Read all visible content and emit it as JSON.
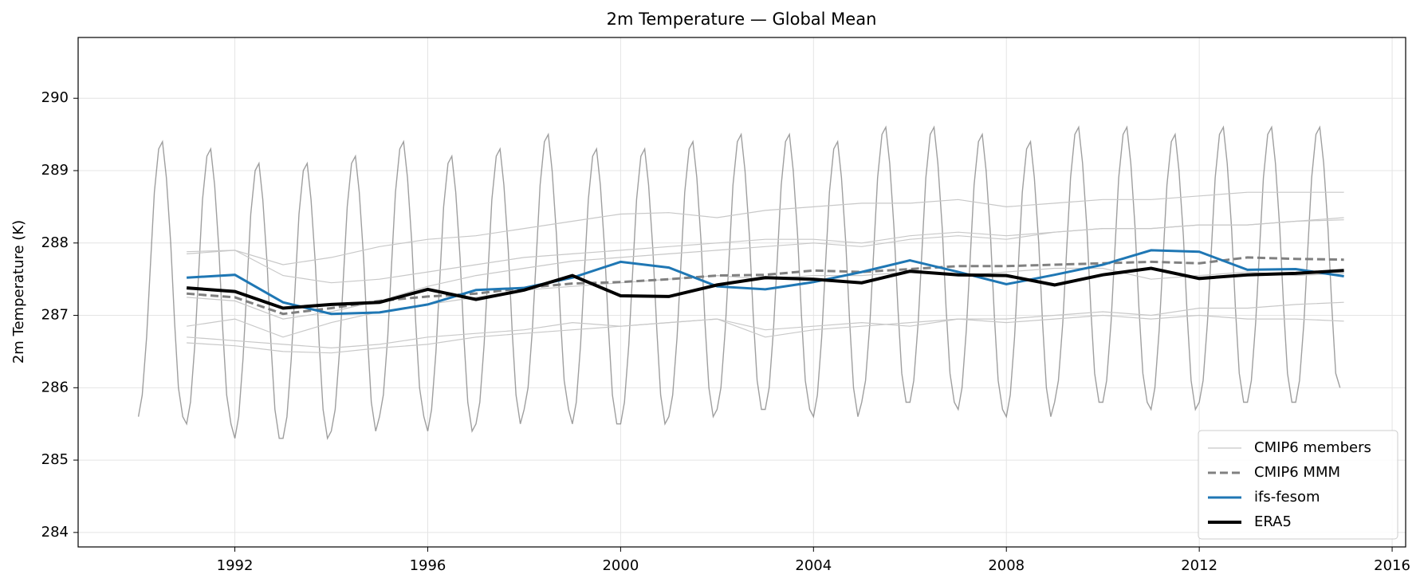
{
  "chart_data": {
    "type": "line",
    "title": "2m Temperature — Global Mean",
    "y_label": "2m Temperature (K)",
    "xlim": [
      1988.75,
      2016.28
    ],
    "ylim": [
      283.8,
      290.84
    ],
    "xticks": [
      1992,
      1996,
      2000,
      2004,
      2008,
      2012,
      2016
    ],
    "yticks": [
      284,
      285,
      286,
      287,
      288,
      289,
      290
    ],
    "grid": true,
    "legend": "lower right",
    "x": [
      1991,
      1992,
      1993,
      1994,
      1995,
      1996,
      1997,
      1998,
      1999,
      2000,
      2001,
      2002,
      2003,
      2004,
      2005,
      2006,
      2007,
      2008,
      2009,
      2010,
      2011,
      2012,
      2013,
      2014,
      2015
    ],
    "monthly": {
      "color": "#7f7f7f",
      "x": [
        1990.0,
        1990.08,
        1990.17,
        1990.25,
        1990.33,
        1990.42,
        1990.5,
        1990.58,
        1990.67,
        1990.75,
        1990.83,
        1990.92,
        1991.0,
        1991.08,
        1991.17,
        1991.25,
        1991.33,
        1991.42,
        1991.5,
        1991.58,
        1991.67,
        1991.75,
        1991.83,
        1991.92,
        1992.0,
        1992.08,
        1992.17,
        1992.25,
        1992.33,
        1992.42,
        1992.5,
        1992.58,
        1992.67,
        1992.75,
        1992.83,
        1992.92,
        1993.0,
        1993.08,
        1993.17,
        1993.25,
        1993.33,
        1993.42,
        1993.5,
        1993.58,
        1993.67,
        1993.75,
        1993.83,
        1993.92,
        1994.0,
        1994.08,
        1994.17,
        1994.25,
        1994.33,
        1994.42,
        1994.5,
        1994.58,
        1994.67,
        1994.75,
        1994.83,
        1994.92,
        1995.0,
        1995.08,
        1995.17,
        1995.25,
        1995.33,
        1995.42,
        1995.5,
        1995.58,
        1995.67,
        1995.75,
        1995.83,
        1995.92,
        1996.0,
        1996.08,
        1996.17,
        1996.25,
        1996.33,
        1996.42,
        1996.5,
        1996.58,
        1996.67,
        1996.75,
        1996.83,
        1996.92,
        1997.0,
        1997.08,
        1997.17,
        1997.25,
        1997.33,
        1997.42,
        1997.5,
        1997.58,
        1997.67,
        1997.75,
        1997.83,
        1997.92,
        1998.0,
        1998.08,
        1998.17,
        1998.25,
        1998.33,
        1998.42,
        1998.5,
        1998.58,
        1998.67,
        1998.75,
        1998.83,
        1998.92,
        1999.0,
        1999.08,
        1999.17,
        1999.25,
        1999.33,
        1999.42,
        1999.5,
        1999.58,
        1999.67,
        1999.75,
        1999.83,
        1999.92,
        2000.0,
        2000.08,
        2000.17,
        2000.25,
        2000.33,
        2000.42,
        2000.5,
        2000.58,
        2000.67,
        2000.75,
        2000.83,
        2000.92,
        2001.0,
        2001.08,
        2001.17,
        2001.25,
        2001.33,
        2001.42,
        2001.5,
        2001.58,
        2001.67,
        2001.75,
        2001.83,
        2001.92,
        2002.0,
        2002.08,
        2002.17,
        2002.25,
        2002.33,
        2002.42,
        2002.5,
        2002.58,
        2002.67,
        2002.75,
        2002.83,
        2002.92,
        2003.0,
        2003.08,
        2003.17,
        2003.25,
        2003.33,
        2003.42,
        2003.5,
        2003.58,
        2003.67,
        2003.75,
        2003.83,
        2003.92,
        2004.0,
        2004.08,
        2004.17,
        2004.25,
        2004.33,
        2004.42,
        2004.5,
        2004.58,
        2004.67,
        2004.75,
        2004.83,
        2004.92,
        2005.0,
        2005.08,
        2005.17,
        2005.25,
        2005.33,
        2005.42,
        2005.5,
        2005.58,
        2005.67,
        2005.75,
        2005.83,
        2005.92,
        2006.0,
        2006.08,
        2006.17,
        2006.25,
        2006.33,
        2006.42,
        2006.5,
        2006.58,
        2006.67,
        2006.75,
        2006.83,
        2006.92,
        2007.0,
        2007.08,
        2007.17,
        2007.25,
        2007.33,
        2007.42,
        2007.5,
        2007.58,
        2007.67,
        2007.75,
        2007.83,
        2007.92,
        2008.0,
        2008.08,
        2008.17,
        2008.25,
        2008.33,
        2008.42,
        2008.5,
        2008.58,
        2008.67,
        2008.75,
        2008.83,
        2008.92,
        2009.0,
        2009.08,
        2009.17,
        2009.25,
        2009.33,
        2009.42,
        2009.5,
        2009.58,
        2009.67,
        2009.75,
        2009.83,
        2009.92,
        2010.0,
        2010.08,
        2010.17,
        2010.25,
        2010.33,
        2010.42,
        2010.5,
        2010.58,
        2010.67,
        2010.75,
        2010.83,
        2010.92,
        2011.0,
        2011.08,
        2011.17,
        2011.25,
        2011.33,
        2011.42,
        2011.5,
        2011.58,
        2011.67,
        2011.75,
        2011.83,
        2011.92,
        2012.0,
        2012.08,
        2012.17,
        2012.25,
        2012.33,
        2012.42,
        2012.5,
        2012.58,
        2012.67,
        2012.75,
        2012.83,
        2012.92,
        2013.0,
        2013.08,
        2013.17,
        2013.25,
        2013.33,
        2013.42,
        2013.5,
        2013.58,
        2013.67,
        2013.75,
        2013.83,
        2013.92,
        2014.0,
        2014.08,
        2014.17,
        2014.25,
        2014.33,
        2014.42,
        2014.5,
        2014.58,
        2014.67,
        2014.75,
        2014.83,
        2014.92
      ],
      "values": [
        285.6,
        285.9,
        286.7,
        287.7,
        288.7,
        289.3,
        289.4,
        288.9,
        288.0,
        286.9,
        286.0,
        285.6,
        285.5,
        285.8,
        286.6,
        287.6,
        288.6,
        289.2,
        289.3,
        288.8,
        287.9,
        286.8,
        285.9,
        285.5,
        285.3,
        285.6,
        286.4,
        287.4,
        288.4,
        289.0,
        289.1,
        288.6,
        287.7,
        286.6,
        285.7,
        285.3,
        285.3,
        285.6,
        286.4,
        287.4,
        288.4,
        289.0,
        289.1,
        288.6,
        287.7,
        286.6,
        285.7,
        285.3,
        285.4,
        285.7,
        286.5,
        287.5,
        288.5,
        289.1,
        289.2,
        288.7,
        287.8,
        286.7,
        285.8,
        285.4,
        285.6,
        285.9,
        286.7,
        287.7,
        288.7,
        289.3,
        289.4,
        288.9,
        288.0,
        286.9,
        286.0,
        285.6,
        285.4,
        285.7,
        286.5,
        287.5,
        288.5,
        289.1,
        289.2,
        288.7,
        287.8,
        286.7,
        285.8,
        285.4,
        285.5,
        285.8,
        286.6,
        287.6,
        288.6,
        289.2,
        289.3,
        288.8,
        287.9,
        286.8,
        285.9,
        285.5,
        285.7,
        286.0,
        286.8,
        287.8,
        288.8,
        289.4,
        289.5,
        289.0,
        288.1,
        287.0,
        286.1,
        285.7,
        285.5,
        285.8,
        286.6,
        287.6,
        288.6,
        289.2,
        289.3,
        288.8,
        287.9,
        286.8,
        285.9,
        285.5,
        285.5,
        285.8,
        286.6,
        287.6,
        288.6,
        289.2,
        289.3,
        288.8,
        287.9,
        286.8,
        285.9,
        285.5,
        285.6,
        285.9,
        286.7,
        287.7,
        288.7,
        289.3,
        289.4,
        288.9,
        288.0,
        286.9,
        286.0,
        285.6,
        285.7,
        286.0,
        286.8,
        287.8,
        288.8,
        289.4,
        289.5,
        289.0,
        288.1,
        287.0,
        286.1,
        285.7,
        285.7,
        286.0,
        286.8,
        287.8,
        288.8,
        289.4,
        289.5,
        289.0,
        288.1,
        287.0,
        286.1,
        285.7,
        285.6,
        285.9,
        286.7,
        287.7,
        288.7,
        289.3,
        289.4,
        288.9,
        288.0,
        286.9,
        286.0,
        285.6,
        285.8,
        286.1,
        286.9,
        287.9,
        288.9,
        289.5,
        289.6,
        289.1,
        288.2,
        287.1,
        286.2,
        285.8,
        285.8,
        286.1,
        286.9,
        287.9,
        288.9,
        289.5,
        289.6,
        289.1,
        288.2,
        287.1,
        286.2,
        285.8,
        285.7,
        286.0,
        286.8,
        287.8,
        288.8,
        289.4,
        289.5,
        289.0,
        288.1,
        287.0,
        286.1,
        285.7,
        285.6,
        285.9,
        286.7,
        287.7,
        288.7,
        289.3,
        289.4,
        288.9,
        288.0,
        286.9,
        286.0,
        285.6,
        285.8,
        286.1,
        286.9,
        287.9,
        288.9,
        289.5,
        289.6,
        289.1,
        288.2,
        287.1,
        286.2,
        285.8,
        285.8,
        286.1,
        286.9,
        287.9,
        288.9,
        289.5,
        289.6,
        289.1,
        288.2,
        287.1,
        286.2,
        285.8,
        285.7,
        286.0,
        286.8,
        287.8,
        288.8,
        289.4,
        289.5,
        289.0,
        288.1,
        287.0,
        286.1,
        285.7,
        285.8,
        286.1,
        286.9,
        287.9,
        288.9,
        289.5,
        289.6,
        289.1,
        288.2,
        287.1,
        286.2,
        285.8,
        285.8,
        286.1,
        286.9,
        287.9,
        288.9,
        289.5,
        289.6,
        289.1,
        288.2,
        287.1,
        286.2,
        285.8,
        285.8,
        286.1,
        286.9,
        287.9,
        288.9,
        289.5,
        289.6,
        289.1,
        288.2,
        287.1,
        286.2,
        286.0
      ]
    },
    "series": [
      {
        "name": "CMIP6 members",
        "color": "#c8c8c8",
        "members": [
          [
            287.88,
            287.9,
            287.7,
            287.8,
            287.95,
            288.05,
            288.1,
            288.2,
            288.3,
            288.4,
            288.42,
            288.35,
            288.45,
            288.5,
            288.55,
            288.55,
            288.6,
            288.5,
            288.55,
            288.6,
            288.6,
            288.65,
            288.7,
            288.7,
            288.7
          ],
          [
            286.7,
            286.65,
            286.6,
            286.55,
            286.6,
            286.7,
            286.75,
            286.8,
            286.9,
            286.85,
            286.9,
            286.95,
            286.8,
            286.85,
            286.9,
            286.85,
            286.95,
            286.9,
            286.95,
            287.0,
            286.95,
            287.0,
            286.95,
            286.95,
            286.92
          ],
          [
            287.25,
            287.2,
            286.95,
            287.05,
            287.2,
            287.4,
            287.55,
            287.65,
            287.75,
            287.8,
            287.85,
            287.9,
            287.95,
            288.0,
            287.95,
            288.05,
            288.1,
            288.05,
            288.15,
            288.2,
            288.2,
            288.25,
            288.25,
            288.3,
            288.32
          ],
          [
            286.62,
            286.58,
            286.5,
            286.48,
            286.55,
            286.6,
            286.7,
            286.75,
            286.8,
            286.85,
            286.9,
            286.95,
            286.7,
            286.8,
            286.85,
            286.9,
            286.95,
            286.95,
            287.0,
            287.05,
            287.0,
            287.1,
            287.1,
            287.15,
            287.18
          ],
          [
            287.85,
            287.9,
            287.55,
            287.45,
            287.5,
            287.6,
            287.7,
            287.8,
            287.85,
            287.9,
            287.95,
            288.0,
            288.05,
            288.05,
            288.0,
            288.1,
            288.15,
            288.1,
            288.15,
            288.2,
            288.2,
            288.25,
            288.25,
            288.3,
            288.35
          ],
          [
            286.85,
            286.95,
            286.7,
            286.9,
            287.05,
            287.15,
            287.25,
            287.35,
            287.4,
            287.45,
            287.5,
            287.55,
            287.5,
            287.55,
            287.55,
            287.6,
            287.55,
            287.6,
            287.65,
            287.65,
            287.5,
            287.55,
            287.6,
            287.55,
            287.58
          ]
        ]
      },
      {
        "name": "CMIP6 MMM",
        "color": "#808080",
        "dashed": true,
        "values": [
          287.3,
          287.25,
          287.02,
          287.1,
          287.2,
          287.26,
          287.3,
          287.38,
          287.44,
          287.46,
          287.5,
          287.55,
          287.56,
          287.62,
          287.6,
          287.64,
          287.68,
          287.68,
          287.7,
          287.72,
          287.74,
          287.72,
          287.8,
          287.78,
          287.77
        ]
      },
      {
        "name": "ifs-fesom",
        "color": "#1f77b4",
        "values": [
          287.52,
          287.56,
          287.18,
          287.02,
          287.04,
          287.15,
          287.35,
          287.38,
          287.52,
          287.74,
          287.66,
          287.4,
          287.36,
          287.46,
          287.6,
          287.76,
          287.6,
          287.43,
          287.56,
          287.7,
          287.9,
          287.88,
          287.63,
          287.64,
          287.54
        ]
      },
      {
        "name": "ERA5",
        "color": "#000000",
        "values": [
          287.38,
          287.33,
          287.1,
          287.15,
          287.18,
          287.36,
          287.22,
          287.35,
          287.55,
          287.27,
          287.26,
          287.42,
          287.52,
          287.5,
          287.45,
          287.61,
          287.56,
          287.55,
          287.42,
          287.56,
          287.65,
          287.51,
          287.56,
          287.58,
          287.62
        ]
      }
    ]
  }
}
